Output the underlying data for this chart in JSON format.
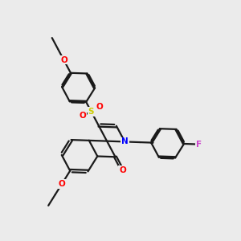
{
  "background_color": "#ebebeb",
  "bond_color": "#1a1a1a",
  "atom_colors": {
    "O": "#ff0000",
    "N": "#0000ff",
    "S": "#cccc00",
    "F": "#cc44cc"
  },
  "bond_width": 1.6,
  "font_size": 7.5
}
